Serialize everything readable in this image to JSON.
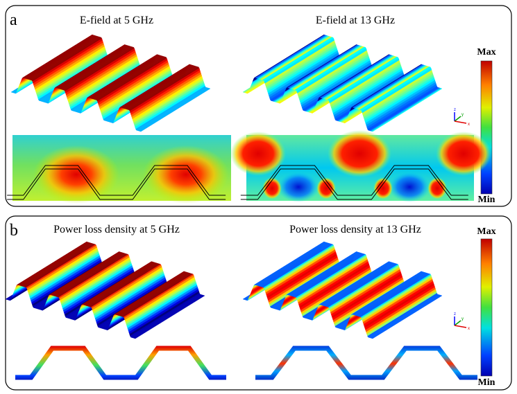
{
  "panels": [
    {
      "label": "a",
      "titles": [
        "E-field at 5 GHz",
        "E-field at 13 GHz"
      ],
      "colorbar": {
        "max": "Max",
        "min": "Min"
      },
      "axes": [
        "z",
        "y",
        "x"
      ]
    },
    {
      "label": "b",
      "titles": [
        "Power loss density at 5 GHz",
        "Power loss density at 13 GHz"
      ],
      "colorbar": {
        "max": "Max",
        "min": "Min"
      },
      "axes": [
        "z",
        "y",
        "x"
      ]
    }
  ]
}
